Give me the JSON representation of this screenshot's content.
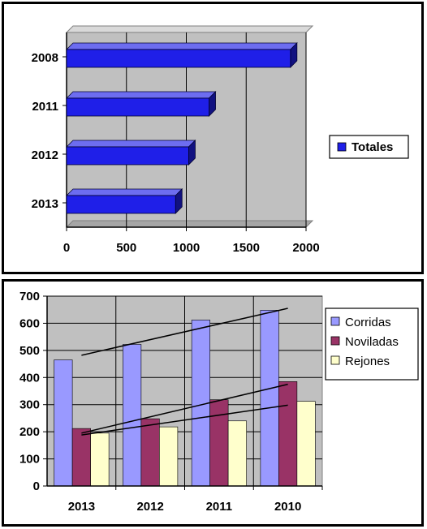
{
  "chart_data": [
    {
      "type": "bar",
      "orientation": "horizontal",
      "three_d": true,
      "categories": [
        "2008",
        "2011",
        "2012",
        "2013"
      ],
      "series": [
        {
          "name": "Totales",
          "values": [
            1870,
            1190,
            1020,
            910
          ],
          "color": "#1f1fe8"
        }
      ],
      "xlim": [
        0,
        2000
      ],
      "x_ticks": [
        "0",
        "500",
        "1000",
        "1500",
        "2000"
      ],
      "grid": true,
      "plot_background": "#c0c0c0",
      "legend_position": "right"
    },
    {
      "type": "bar",
      "three_d": false,
      "categories": [
        "2013",
        "2012",
        "2011",
        "2010"
      ],
      "series": [
        {
          "name": "Corridas",
          "values": [
            465,
            522,
            612,
            648
          ],
          "color": "#9999ff"
        },
        {
          "name": "Noviladas",
          "values": [
            212,
            248,
            318,
            385
          ],
          "color": "#993366"
        },
        {
          "name": "Rejones",
          "values": [
            195,
            218,
            240,
            312
          ],
          "color": "#ffffcc"
        }
      ],
      "trendlines": [
        {
          "series": "Corridas",
          "start": 482,
          "end": 655
        },
        {
          "series": "Noviladas",
          "start": 195,
          "end": 375
        },
        {
          "series": "Rejones",
          "start": 188,
          "end": 298
        }
      ],
      "ylim": [
        0,
        700
      ],
      "y_ticks": [
        "0",
        "100",
        "200",
        "300",
        "400",
        "500",
        "600",
        "700"
      ],
      "grid": true,
      "plot_background": "#c0c0c0",
      "legend_position": "right"
    }
  ]
}
